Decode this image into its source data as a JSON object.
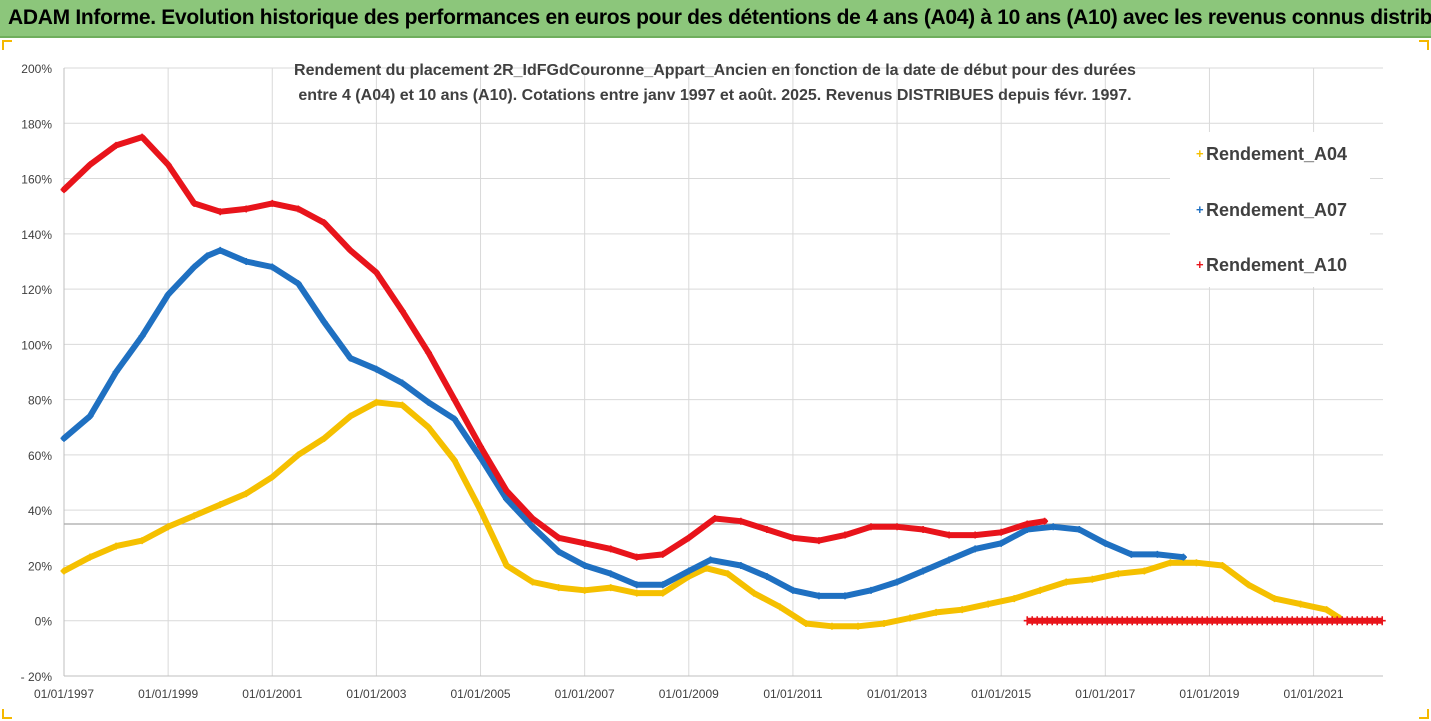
{
  "banner": {
    "title": "ADAM Informe. Evolution historique des performances en euros pour des détentions de 4 ans (A04) à 10 ans (A10) avec les revenus connus distribués"
  },
  "chart_data": {
    "type": "scatter",
    "title_line1": "Rendement du placement 2R_IdFGdCouronne_Appart_Ancien en fonction de la date de début pour des durées",
    "title_line2": "entre 4 (A04) et 10 ans (A10). Cotations entre janv 1997 et août. 2025. Revenus DISTRIBUES depuis févr. 1997.",
    "xlabel": "",
    "ylabel": "",
    "x_tick_labels": [
      "01/01/1997",
      "01/01/1999",
      "01/01/2001",
      "01/01/2003",
      "01/01/2005",
      "01/01/2007",
      "01/01/2009",
      "01/01/2011",
      "01/01/2013",
      "01/01/2015",
      "01/01/2017",
      "01/01/2019",
      "01/01/2021"
    ],
    "y_tick_labels": [
      "- 20%",
      "0%",
      "20%",
      "40%",
      "60%",
      "80%",
      "100%",
      "120%",
      "140%",
      "160%",
      "180%",
      "200%"
    ],
    "xlim": [
      "1997-01-01",
      "2022-05-01"
    ],
    "ylim": [
      -20,
      200
    ],
    "reference_line_y": 35,
    "grid": true,
    "legend_position": "right",
    "series": [
      {
        "name": "Rendement_A04",
        "color": "#f5c000",
        "points": [
          [
            "1997-01-01",
            18
          ],
          [
            "1997-07-01",
            23
          ],
          [
            "1998-01-01",
            27
          ],
          [
            "1998-07-01",
            29
          ],
          [
            "1999-01-01",
            34
          ],
          [
            "1999-07-01",
            38
          ],
          [
            "2000-01-01",
            42
          ],
          [
            "2000-07-01",
            46
          ],
          [
            "2001-01-01",
            52
          ],
          [
            "2001-07-01",
            60
          ],
          [
            "2002-01-01",
            66
          ],
          [
            "2002-07-01",
            74
          ],
          [
            "2003-01-01",
            79
          ],
          [
            "2003-07-01",
            78
          ],
          [
            "2004-01-01",
            70
          ],
          [
            "2004-07-01",
            58
          ],
          [
            "2005-01-01",
            40
          ],
          [
            "2005-07-01",
            20
          ],
          [
            "2006-01-01",
            14
          ],
          [
            "2006-07-01",
            12
          ],
          [
            "2007-01-01",
            11
          ],
          [
            "2007-07-01",
            12
          ],
          [
            "2008-01-01",
            10
          ],
          [
            "2008-07-01",
            10
          ],
          [
            "2009-01-01",
            16
          ],
          [
            "2009-05-01",
            19
          ],
          [
            "2009-10-01",
            17
          ],
          [
            "2010-04-01",
            10
          ],
          [
            "2010-10-01",
            5
          ],
          [
            "2011-04-01",
            -1
          ],
          [
            "2011-10-01",
            -2
          ],
          [
            "2012-04-01",
            -2
          ],
          [
            "2012-10-01",
            -1
          ],
          [
            "2013-04-01",
            1
          ],
          [
            "2013-10-01",
            3
          ],
          [
            "2014-04-01",
            4
          ],
          [
            "2014-10-01",
            6
          ],
          [
            "2015-04-01",
            8
          ],
          [
            "2015-10-01",
            11
          ],
          [
            "2016-04-01",
            14
          ],
          [
            "2016-10-01",
            15
          ],
          [
            "2017-04-01",
            17
          ],
          [
            "2017-10-01",
            18
          ],
          [
            "2018-04-01",
            21
          ],
          [
            "2018-10-01",
            21
          ],
          [
            "2019-04-01",
            20
          ],
          [
            "2019-10-01",
            13
          ],
          [
            "2020-04-01",
            8
          ],
          [
            "2020-10-01",
            6
          ],
          [
            "2021-04-01",
            4
          ],
          [
            "2021-07-01",
            1
          ]
        ]
      },
      {
        "name": "Rendement_A07",
        "color": "#1f70c1",
        "points": [
          [
            "1997-01-01",
            66
          ],
          [
            "1997-07-01",
            74
          ],
          [
            "1998-01-01",
            90
          ],
          [
            "1998-07-01",
            103
          ],
          [
            "1999-01-01",
            118
          ],
          [
            "1999-07-01",
            128
          ],
          [
            "1999-10-01",
            132
          ],
          [
            "2000-01-01",
            134
          ],
          [
            "2000-07-01",
            130
          ],
          [
            "2001-01-01",
            128
          ],
          [
            "2001-07-01",
            122
          ],
          [
            "2002-01-01",
            108
          ],
          [
            "2002-07-01",
            95
          ],
          [
            "2003-01-01",
            91
          ],
          [
            "2003-07-01",
            86
          ],
          [
            "2004-01-01",
            79
          ],
          [
            "2004-07-01",
            73
          ],
          [
            "2005-01-01",
            59
          ],
          [
            "2005-07-01",
            44
          ],
          [
            "2006-01-01",
            34
          ],
          [
            "2006-07-01",
            25
          ],
          [
            "2007-01-01",
            20
          ],
          [
            "2007-07-01",
            17
          ],
          [
            "2008-01-01",
            13
          ],
          [
            "2008-07-01",
            13
          ],
          [
            "2009-01-01",
            18
          ],
          [
            "2009-06-01",
            22
          ],
          [
            "2010-01-01",
            20
          ],
          [
            "2010-07-01",
            16
          ],
          [
            "2011-01-01",
            11
          ],
          [
            "2011-07-01",
            9
          ],
          [
            "2012-01-01",
            9
          ],
          [
            "2012-07-01",
            11
          ],
          [
            "2013-01-01",
            14
          ],
          [
            "2013-07-01",
            18
          ],
          [
            "2014-01-01",
            22
          ],
          [
            "2014-07-01",
            26
          ],
          [
            "2015-01-01",
            28
          ],
          [
            "2015-07-01",
            33
          ],
          [
            "2016-01-01",
            34
          ],
          [
            "2016-07-01",
            33
          ],
          [
            "2017-01-01",
            28
          ],
          [
            "2017-07-01",
            24
          ],
          [
            "2018-01-01",
            24
          ],
          [
            "2018-07-01",
            23
          ]
        ]
      },
      {
        "name": "Rendement_A10",
        "color": "#e8141b",
        "points": [
          [
            "1997-01-01",
            156
          ],
          [
            "1997-07-01",
            165
          ],
          [
            "1998-01-01",
            172
          ],
          [
            "1998-07-01",
            175
          ],
          [
            "1999-01-01",
            165
          ],
          [
            "1999-07-01",
            151
          ],
          [
            "2000-01-01",
            148
          ],
          [
            "2000-07-01",
            149
          ],
          [
            "2001-01-01",
            151
          ],
          [
            "2001-07-01",
            149
          ],
          [
            "2002-01-01",
            144
          ],
          [
            "2002-07-01",
            134
          ],
          [
            "2003-01-01",
            126
          ],
          [
            "2003-07-01",
            112
          ],
          [
            "2004-01-01",
            97
          ],
          [
            "2004-07-01",
            80
          ],
          [
            "2005-01-01",
            63
          ],
          [
            "2005-07-01",
            47
          ],
          [
            "2006-01-01",
            37
          ],
          [
            "2006-07-01",
            30
          ],
          [
            "2007-01-01",
            28
          ],
          [
            "2007-07-01",
            26
          ],
          [
            "2008-01-01",
            23
          ],
          [
            "2008-07-01",
            24
          ],
          [
            "2009-01-01",
            30
          ],
          [
            "2009-07-01",
            37
          ],
          [
            "2010-01-01",
            36
          ],
          [
            "2010-07-01",
            33
          ],
          [
            "2011-01-01",
            30
          ],
          [
            "2011-07-01",
            29
          ],
          [
            "2012-01-01",
            31
          ],
          [
            "2012-07-01",
            34
          ],
          [
            "2013-01-01",
            34
          ],
          [
            "2013-07-01",
            33
          ],
          [
            "2014-01-01",
            31
          ],
          [
            "2014-07-01",
            31
          ],
          [
            "2015-01-01",
            32
          ],
          [
            "2015-07-01",
            35
          ],
          [
            "2015-11-01",
            36
          ]
        ],
        "zero_segment": [
          "2015-07-01",
          "2022-05-01",
          0
        ]
      }
    ]
  }
}
